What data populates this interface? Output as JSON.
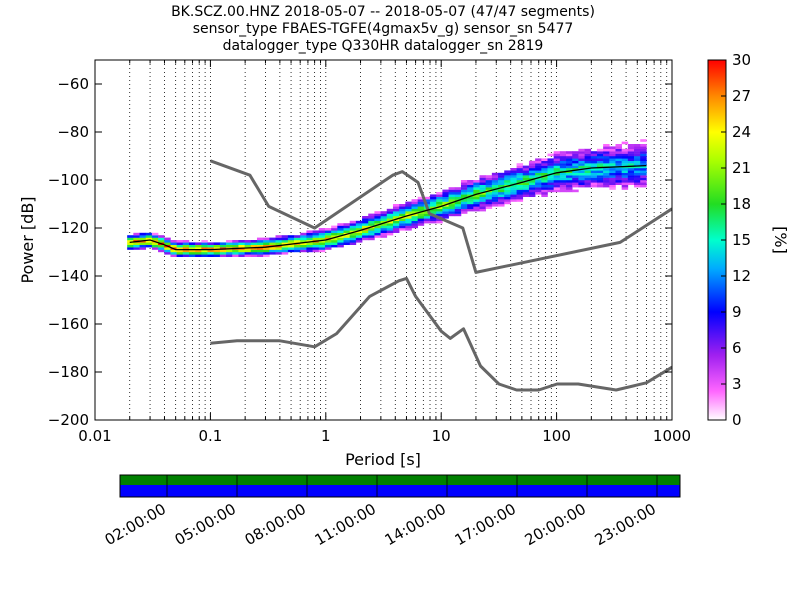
{
  "title_lines": [
    "BK.SCZ.00.HNZ   2018-05-07 -- 2018-05-07  (47/47 segments)",
    "sensor_type FBAES-TGFE(4gmax5v_g) sensor_sn 5477",
    "datalogger_type Q330HR datalogger_sn 2819"
  ],
  "colors": {
    "noise_model": "#666666",
    "mode_line": "#000000",
    "coverage_top": "#008000",
    "coverage_bottom": "#0000ff"
  },
  "chart_data": {
    "type": "heatmap",
    "title": "BK.SCZ.00.HNZ   2018-05-07 -- 2018-05-07  (47/47 segments)",
    "xlabel": "Period [s]",
    "ylabel": "Power [dB]",
    "x_scale": "log",
    "xlim": [
      0.01,
      1000
    ],
    "ylim": [
      -200,
      -50
    ],
    "xticks": [
      0.01,
      0.1,
      1,
      10,
      100,
      1000
    ],
    "xtick_labels": [
      "0.01",
      "0.1",
      "1",
      "10",
      "100",
      "1000"
    ],
    "yticks": [
      -200,
      -180,
      -160,
      -140,
      -120,
      -100,
      -80,
      -60
    ],
    "ytick_labels": [
      "−200",
      "−180",
      "−160",
      "−140",
      "−120",
      "−100",
      "−80",
      "−60"
    ],
    "grid": "vertical dotted at decades and minor decades",
    "colorbar": {
      "label": "[%]",
      "range": [
        0,
        30
      ],
      "ticks": [
        0,
        3,
        6,
        9,
        12,
        15,
        18,
        21,
        24,
        27,
        30
      ],
      "colormap": "white-magenta-blue-cyan-green-yellow-red"
    },
    "mode_curve": [
      [
        0.02,
        -126
      ],
      [
        0.03,
        -125
      ],
      [
        0.04,
        -127
      ],
      [
        0.05,
        -129
      ],
      [
        0.1,
        -129
      ],
      [
        0.3,
        -128
      ],
      [
        1,
        -125
      ],
      [
        2,
        -121
      ],
      [
        5,
        -115
      ],
      [
        10,
        -111
      ],
      [
        20,
        -106
      ],
      [
        50,
        -101
      ],
      [
        100,
        -97
      ],
      [
        200,
        -95
      ],
      [
        600,
        -94
      ]
    ],
    "upper_noise_model": [
      [
        0.1,
        -92
      ],
      [
        0.22,
        -98
      ],
      [
        0.32,
        -111
      ],
      [
        0.8,
        -120
      ],
      [
        3.8,
        -98
      ],
      [
        4.6,
        -96.5
      ],
      [
        6.3,
        -101
      ],
      [
        7.9,
        -114
      ],
      [
        15.4,
        -120
      ],
      [
        20,
        -138.5
      ],
      [
        354.8,
        -126
      ],
      [
        1000,
        -112
      ]
    ],
    "lower_noise_model": [
      [
        0.1,
        -168
      ],
      [
        0.17,
        -167
      ],
      [
        0.4,
        -167
      ],
      [
        0.8,
        -169.5
      ],
      [
        1.24,
        -164
      ],
      [
        2.4,
        -148.5
      ],
      [
        4.3,
        -142
      ],
      [
        5,
        -141
      ],
      [
        6,
        -148.5
      ],
      [
        10,
        -163
      ],
      [
        12,
        -166
      ],
      [
        15.6,
        -162
      ],
      [
        21.9,
        -177.5
      ],
      [
        31.6,
        -185
      ],
      [
        45,
        -187.5
      ],
      [
        70,
        -187.5
      ],
      [
        101,
        -185
      ],
      [
        154,
        -185
      ],
      [
        328,
        -187.5
      ],
      [
        600,
        -184.5
      ],
      [
        1000,
        -178
      ]
    ],
    "coverage": {
      "tick_labels": [
        "02:00:00",
        "05:00:00",
        "08:00:00",
        "11:00:00",
        "14:00:00",
        "17:00:00",
        "20:00:00",
        "23:00:00"
      ]
    }
  }
}
